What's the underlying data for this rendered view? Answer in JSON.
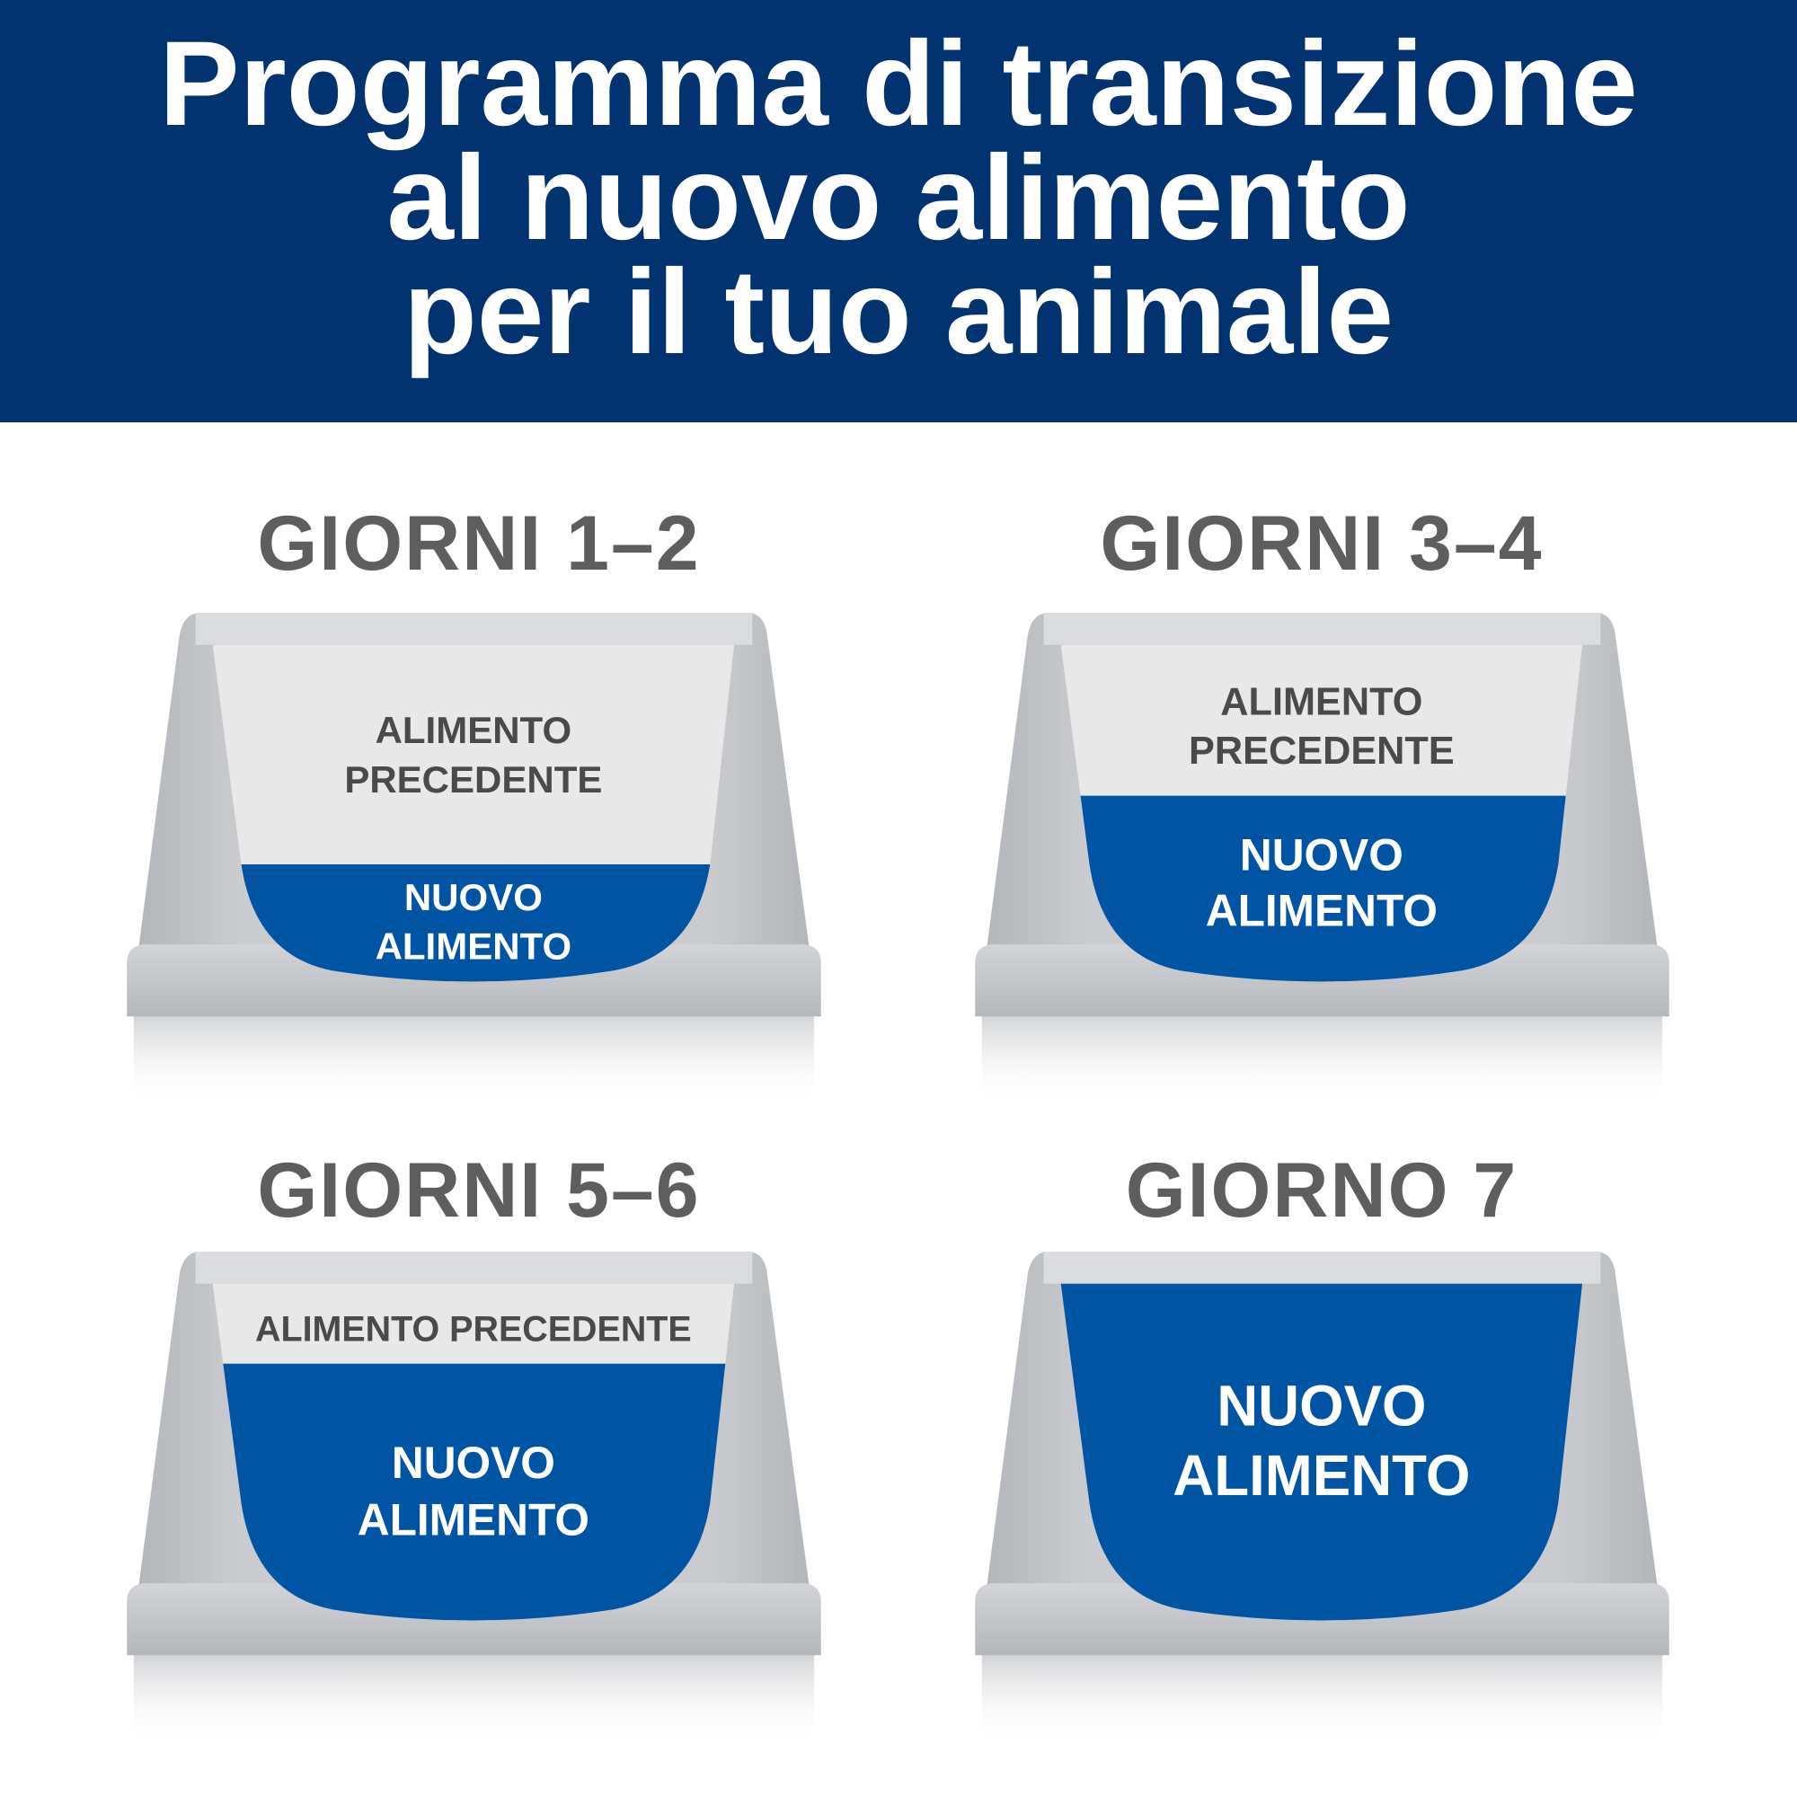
{
  "header": {
    "title_lines": [
      "Programma di transizione",
      "al nuovo alimento",
      "per il tuo animale"
    ],
    "background_color": "#00336f"
  },
  "colors": {
    "new_food": "#0054a4",
    "old_food": "#e8e8e9",
    "bowl": "#c4c7ca",
    "heading_text": "#5e5e5e"
  },
  "stages": [
    {
      "heading": "GIORNI 1–2",
      "old_label": [
        "ALIMENTO",
        "PRECEDENTE"
      ],
      "new_label": [
        "NUOVO",
        "ALIMENTO"
      ],
      "new_food_percent": 25
    },
    {
      "heading": "GIORNI 3–4",
      "old_label": [
        "ALIMENTO",
        "PRECEDENTE"
      ],
      "new_label": [
        "NUOVO",
        "ALIMENTO"
      ],
      "new_food_percent": 50
    },
    {
      "heading": "GIORNI 5–6",
      "old_label": [
        "ALIMENTO PRECEDENTE"
      ],
      "new_label": [
        "NUOVO",
        "ALIMENTO"
      ],
      "new_food_percent": 75
    },
    {
      "heading": "GIORNO 7",
      "old_label": [],
      "new_label": [
        "NUOVO",
        "ALIMENTO"
      ],
      "new_food_percent": 100
    }
  ]
}
